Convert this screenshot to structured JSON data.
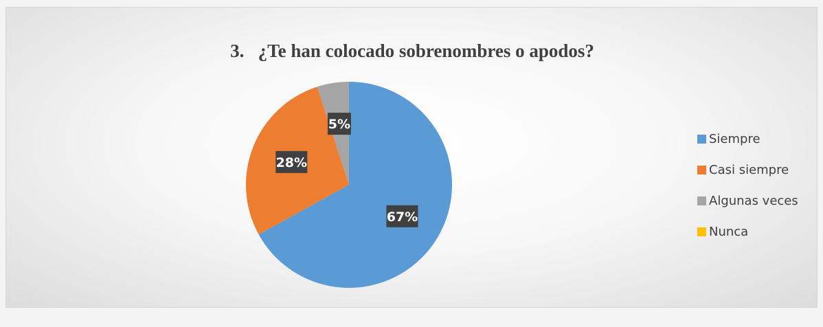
{
  "chart_data": {
    "type": "pie",
    "title": "3.   ¿Te han colocado sobrenombres o apodos?",
    "categories": [
      "Siempre",
      "Casi siempre",
      "Algunas veces",
      "Nunca"
    ],
    "values": [
      67,
      28,
      5,
      0
    ],
    "labels": [
      "67%",
      "28%",
      "5%",
      ""
    ],
    "colors": [
      "#5b9bd5",
      "#ed7d31",
      "#a5a5a5",
      "#ffc000"
    ],
    "legend_position": "right"
  }
}
